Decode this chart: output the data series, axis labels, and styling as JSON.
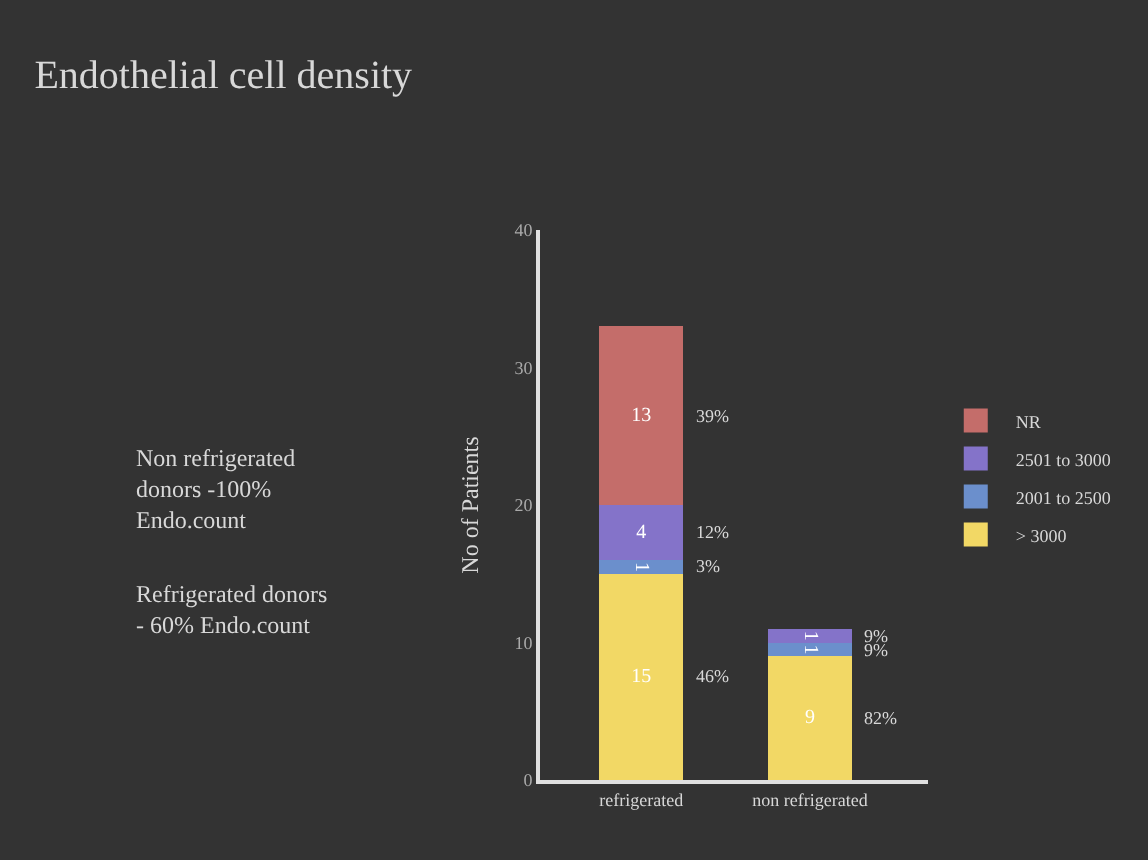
{
  "chart_data": {
    "type": "bar",
    "stacked": true,
    "title": "Endothelial cell density",
    "ylabel": "No of Patients",
    "categories": [
      "refrigerated",
      "non refrigerated"
    ],
    "series": [
      {
        "name": "> 3000",
        "color": "#f2d865",
        "values": [
          15,
          9
        ],
        "value_labels": [
          "15",
          "9"
        ]
      },
      {
        "name": "2001 to 2500",
        "color": "#6b8fcc",
        "values": [
          1,
          1
        ],
        "value_labels": [
          "1",
          "1"
        ]
      },
      {
        "name": "2501 to 3000",
        "color": "#8473c9",
        "values": [
          4,
          1
        ],
        "value_labels": [
          "4",
          "1"
        ]
      },
      {
        "name": "NR",
        "color": "#c46d6a",
        "values": [
          13,
          0
        ],
        "value_labels": [
          "13",
          null
        ]
      }
    ],
    "ylim": [
      0,
      40
    ],
    "yticks": [
      0,
      10,
      20,
      30,
      40
    ],
    "grid": false,
    "legend": "right",
    "annotations": [
      "Non refrigerated donors -100% Endo.count",
      "Refrigerated donors - 60% Endo.count",
      "39%",
      "12%",
      "3%",
      "46%",
      "9%",
      "9%",
      "82%"
    ]
  }
}
